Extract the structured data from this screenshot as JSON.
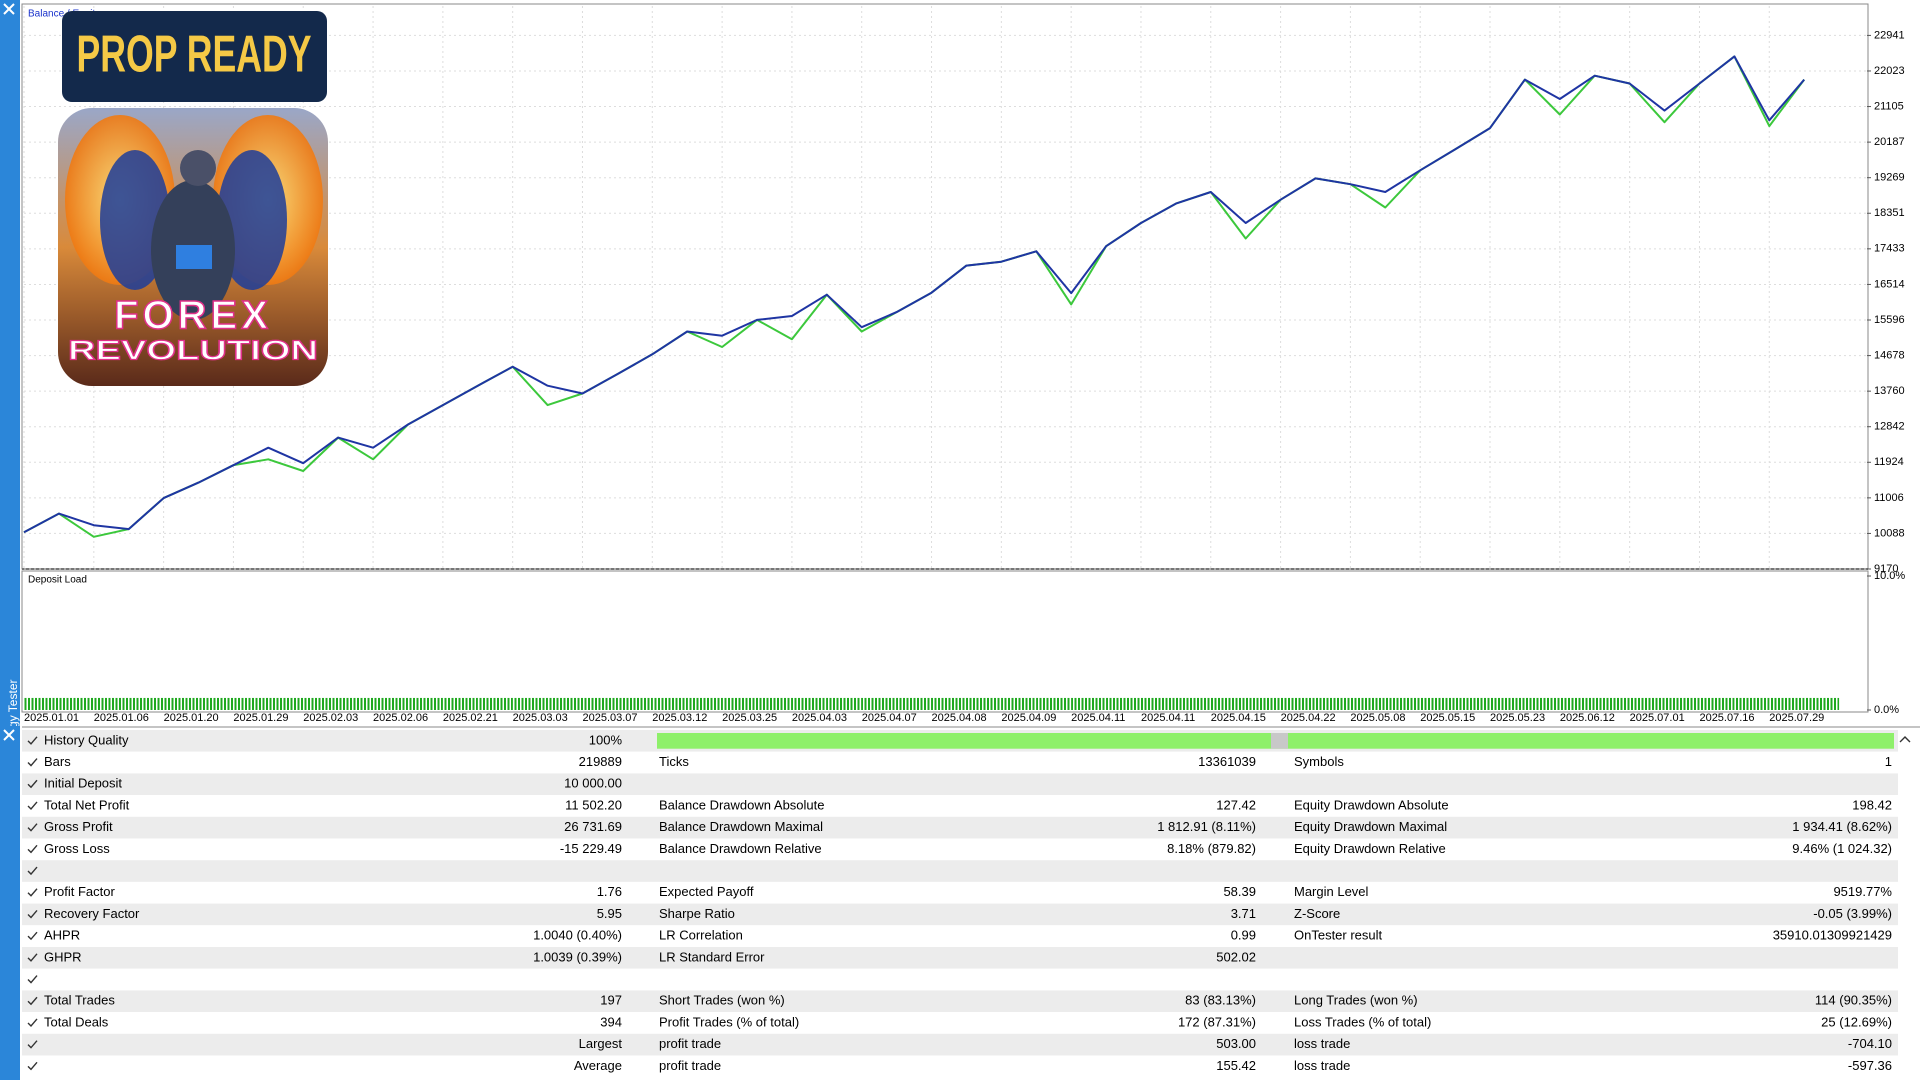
{
  "chart_data": [
    {
      "type": "line",
      "title": "Balance / Equity",
      "categories": [
        "2025.01.01",
        null,
        "2025.01.06",
        null,
        "2025.01.20",
        null,
        "2025.01.29",
        null,
        "2025.02.03",
        null,
        "2025.02.06",
        null,
        "2025.02.21",
        null,
        "2025.03.03",
        null,
        "2025.03.07",
        null,
        "2025.03.12",
        null,
        "2025.03.25",
        null,
        "2025.04.03",
        null,
        "2025.04.07",
        null,
        "2025.04.08",
        null,
        "2025.04.09",
        null,
        "2025.04.11",
        null,
        "2025.04.11",
        null,
        "2025.04.15",
        null,
        "2025.04.22",
        null,
        "2025.05.08",
        null,
        "2025.05.15",
        null,
        "2025.05.23",
        null,
        "2025.06.12",
        null,
        "2025.07.01",
        null,
        "2025.07.16",
        null,
        "2025.07.29",
        null
      ],
      "series": [
        {
          "color": "#3cc83c",
          "values": [
            10120,
            10600,
            10000,
            10200,
            11000,
            11400,
            11850,
            12000,
            11700,
            12560,
            12000,
            12900,
            13400,
            13900,
            14390,
            13400,
            13700,
            14200,
            14710,
            15300,
            14900,
            15600,
            15100,
            16250,
            15300,
            15800,
            16300,
            17000,
            17100,
            17370,
            16000,
            17500,
            18100,
            18600,
            18900,
            17700,
            18700,
            19250,
            19100,
            18500,
            19460,
            20000,
            20550,
            21800,
            20900,
            21900,
            21700,
            20700,
            21700,
            22400,
            20600,
            21800
          ]
        },
        {
          "color": "#1f35a3",
          "values": [
            10120,
            10600,
            10300,
            10200,
            11000,
            11400,
            11850,
            12300,
            11900,
            12560,
            12300,
            12900,
            13400,
            13900,
            14390,
            13900,
            13700,
            14200,
            14710,
            15300,
            15190,
            15600,
            15700,
            16250,
            15410,
            15800,
            16300,
            17000,
            17100,
            17370,
            16290,
            17500,
            18100,
            18600,
            18900,
            18100,
            18700,
            19250,
            19100,
            18900,
            19460,
            20000,
            20550,
            21800,
            21300,
            21900,
            21700,
            21000,
            21700,
            22400,
            20750,
            21800
          ]
        }
      ],
      "ylim": [
        9170,
        23700
      ],
      "yticks": [
        9170,
        10088,
        11006,
        11924,
        12842,
        13760,
        14678,
        15596,
        16514,
        17433,
        18351,
        19269,
        20187,
        21105,
        22023,
        22941
      ],
      "grid": true
    },
    {
      "type": "bar",
      "title": "Deposit Load",
      "color": "#1fa81f",
      "values": [
        0.9,
        0.9,
        0.9,
        0.9,
        0.9,
        0.9,
        0.9,
        0.9,
        0.9,
        0.9,
        0.9,
        0.9,
        0.9,
        0.9,
        0.9,
        0.9,
        0.9,
        0.9,
        0.9,
        0.9,
        0.9,
        0.9,
        0.9,
        0.9,
        0.9,
        0.9,
        0.9,
        0.9,
        0.9,
        0.9,
        0.9,
        0.9,
        0.9,
        0.9,
        0.9,
        0.9,
        0.9,
        0.9,
        0.9,
        0.9,
        0.9,
        0.9,
        0.9,
        0.9,
        0.9,
        0.9,
        0.9,
        0.9,
        0.9,
        0.9,
        0.9,
        0.9
      ],
      "ylim": [
        0,
        10
      ],
      "yticks": [
        {
          "value": 10,
          "label": "10.0%"
        },
        {
          "value": 0,
          "label": "0.0%"
        }
      ]
    }
  ],
  "logo": {
    "banner": "PROP READY",
    "line1": "FOREX",
    "line2": "REVOLUTION"
  },
  "sidebar": {
    "label": "Strategy Tester"
  },
  "report": {
    "rows": [
      [
        "History Quality",
        "100%"
      ],
      [
        "Bars",
        "219889",
        "Ticks",
        "13361039",
        "Symbols",
        "1"
      ],
      [
        "Initial Deposit",
        "10 000.00"
      ],
      [
        "Total Net Profit",
        "11 502.20",
        "Balance Drawdown Absolute",
        "127.42",
        "Equity Drawdown Absolute",
        "198.42"
      ],
      [
        "Gross Profit",
        "26 731.69",
        "Balance Drawdown Maximal",
        "1 812.91 (8.11%)",
        "Equity Drawdown Maximal",
        "1 934.41 (8.62%)"
      ],
      [
        "Gross Loss",
        "-15 229.49",
        "Balance Drawdown Relative",
        "8.18% (879.82)",
        "Equity Drawdown Relative",
        "9.46% (1 024.32)"
      ],
      [],
      [
        "Profit Factor",
        "1.76",
        "Expected Payoff",
        "58.39",
        "Margin Level",
        "9519.77%"
      ],
      [
        "Recovery Factor",
        "5.95",
        "Sharpe Ratio",
        "3.71",
        "Z-Score",
        "-0.05 (3.99%)"
      ],
      [
        "AHPR",
        "1.0040 (0.40%)",
        "LR Correlation",
        "0.99",
        "OnTester result",
        "35910.01309921429"
      ],
      [
        "GHPR",
        "1.0039 (0.39%)",
        "LR Standard Error",
        "502.02"
      ],
      [],
      [
        "Total Trades",
        "197",
        "Short Trades (won %)",
        "83 (83.13%)",
        "Long Trades (won %)",
        "114 (90.35%)"
      ],
      [
        "Total Deals",
        "394",
        "Profit Trades (% of total)",
        "172 (87.31%)",
        "Loss Trades (% of total)",
        "25 (12.69%)"
      ],
      [
        null,
        "Largest",
        "profit trade",
        "503.00",
        "loss trade",
        "-704.10"
      ],
      [
        null,
        "Average",
        "profit trade",
        "155.42",
        "loss trade",
        "-597.36"
      ]
    ]
  }
}
